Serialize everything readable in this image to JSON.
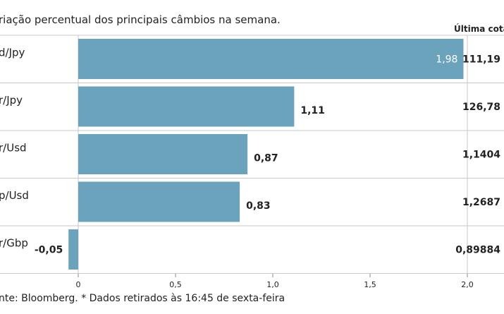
{
  "chart_data": {
    "type": "bar",
    "orientation": "horizontal",
    "title": "riação percentual dos principais câmbios na semana.",
    "side_column_header": "Última cotaç",
    "categories": [
      "d/Jpy",
      "r/Jpy",
      "r/Usd",
      "p/Usd",
      "r/Gbp"
    ],
    "values": [
      1.98,
      1.11,
      0.87,
      0.83,
      -0.05
    ],
    "value_labels": [
      "1,98",
      "1,11",
      "0,87",
      "0,83",
      "-0,05"
    ],
    "last_quotes": [
      "111,19",
      "126,78",
      "1,1404",
      "1,2687",
      "0,89884"
    ],
    "xlim": [
      0,
      2.0
    ],
    "x_ticks": [
      0,
      0.5,
      1.0,
      1.5,
      2.0
    ],
    "x_tick_labels": [
      "0",
      "0,5",
      "1,0",
      "1,5",
      "2,0"
    ],
    "grid": "vertical at 2,0",
    "bar_color": "#6ba3bd",
    "footnote": "nte: Bloomberg.  * Dados retirados às 16:45 de sexta-feira"
  }
}
